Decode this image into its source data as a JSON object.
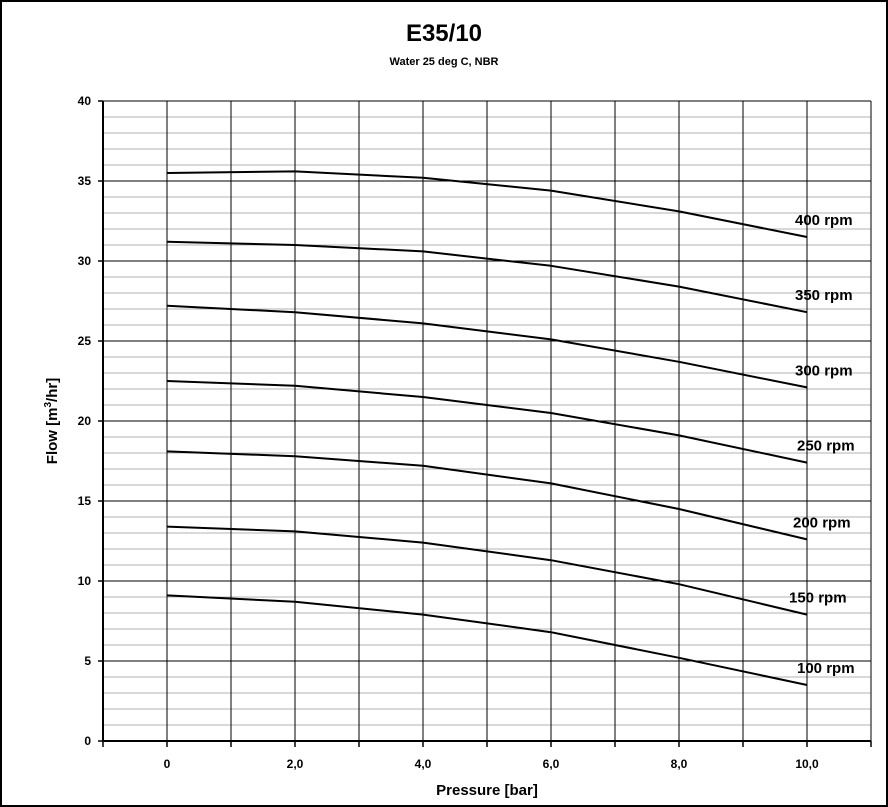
{
  "chart_data": {
    "type": "line",
    "title": "E35/10",
    "subtitle": "Water 25 deg C, NBR",
    "xlabel": "Pressure [bar]",
    "ylabel_main": "Flow [m",
    "ylabel_sup": "3",
    "ylabel_end": "/hr]",
    "xlim": [
      -1,
      11
    ],
    "ylim": [
      0,
      40
    ],
    "x_ticks": [
      0,
      2,
      4,
      6,
      8,
      10
    ],
    "x_tick_labels": [
      "0",
      "2,0",
      "4,0",
      "6,0",
      "8,0",
      "10,0"
    ],
    "y_ticks": [
      0,
      5,
      10,
      15,
      20,
      25,
      30,
      35,
      40
    ],
    "y_tick_labels": [
      "0",
      "5",
      "10",
      "15",
      "20",
      "25",
      "30",
      "35",
      "40"
    ],
    "grid": true,
    "x": [
      0,
      2,
      4,
      6,
      8,
      10
    ],
    "series": [
      {
        "name": "400 rpm",
        "values": [
          35.5,
          35.6,
          35.2,
          34.4,
          33.1,
          31.5
        ]
      },
      {
        "name": "350 rpm",
        "values": [
          31.2,
          31.0,
          30.6,
          29.7,
          28.4,
          26.8
        ]
      },
      {
        "name": "300 rpm",
        "values": [
          27.2,
          26.8,
          26.1,
          25.1,
          23.7,
          22.1
        ]
      },
      {
        "name": "250 rpm",
        "values": [
          22.5,
          22.2,
          21.5,
          20.5,
          19.1,
          17.4
        ]
      },
      {
        "name": "200 rpm",
        "values": [
          18.1,
          17.8,
          17.2,
          16.1,
          14.5,
          12.6
        ]
      },
      {
        "name": "150 rpm",
        "values": [
          13.4,
          13.1,
          12.4,
          11.3,
          9.8,
          7.9
        ]
      },
      {
        "name": "100 rpm",
        "values": [
          9.1,
          8.7,
          7.9,
          6.8,
          5.2,
          3.5
        ]
      }
    ]
  }
}
